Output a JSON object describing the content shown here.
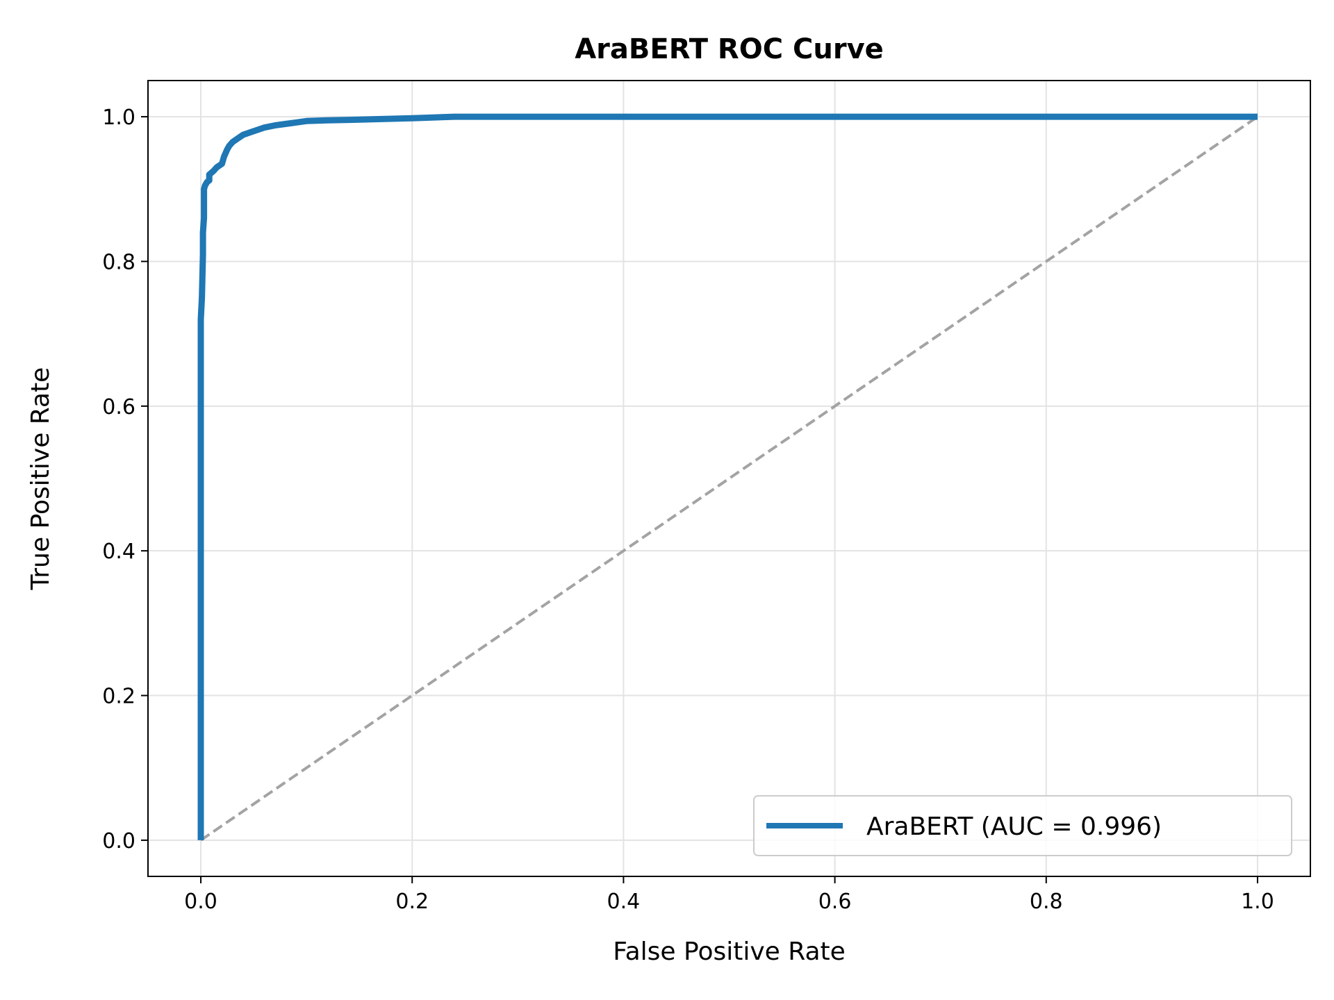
{
  "chart_data": {
    "type": "line",
    "title": "AraBERT ROC Curve",
    "xlabel": "False Positive Rate",
    "ylabel": "True Positive Rate",
    "xlim": [
      -0.05,
      1.05
    ],
    "ylim": [
      -0.05,
      1.05
    ],
    "xticks": [
      "0.0",
      "0.2",
      "0.4",
      "0.6",
      "0.8",
      "1.0"
    ],
    "yticks": [
      "0.0",
      "0.2",
      "0.4",
      "0.6",
      "0.8",
      "1.0"
    ],
    "grid": true,
    "legend_position": "lower right",
    "series": [
      {
        "name": "AraBERT (AUC = 0.996)",
        "color": "#1f77b4",
        "style": "solid",
        "x": [
          0.0,
          0.0,
          0.001,
          0.002,
          0.002,
          0.003,
          0.003,
          0.004,
          0.006,
          0.008,
          0.008,
          0.012,
          0.015,
          0.02,
          0.022,
          0.025,
          0.027,
          0.03,
          0.035,
          0.04,
          0.05,
          0.06,
          0.07,
          0.08,
          0.09,
          0.1,
          0.12,
          0.15,
          0.2,
          0.24,
          0.4,
          0.6,
          0.8,
          1.0
        ],
        "y": [
          0.0,
          0.72,
          0.75,
          0.81,
          0.84,
          0.86,
          0.9,
          0.905,
          0.91,
          0.912,
          0.92,
          0.925,
          0.93,
          0.935,
          0.945,
          0.955,
          0.96,
          0.965,
          0.97,
          0.975,
          0.98,
          0.985,
          0.988,
          0.99,
          0.992,
          0.994,
          0.995,
          0.996,
          0.998,
          1.0,
          1.0,
          1.0,
          1.0,
          1.0
        ]
      },
      {
        "name": "",
        "color": "#a3a3a3",
        "style": "dashed",
        "x": [
          0.0,
          1.0
        ],
        "y": [
          0.0,
          1.0
        ]
      }
    ]
  }
}
